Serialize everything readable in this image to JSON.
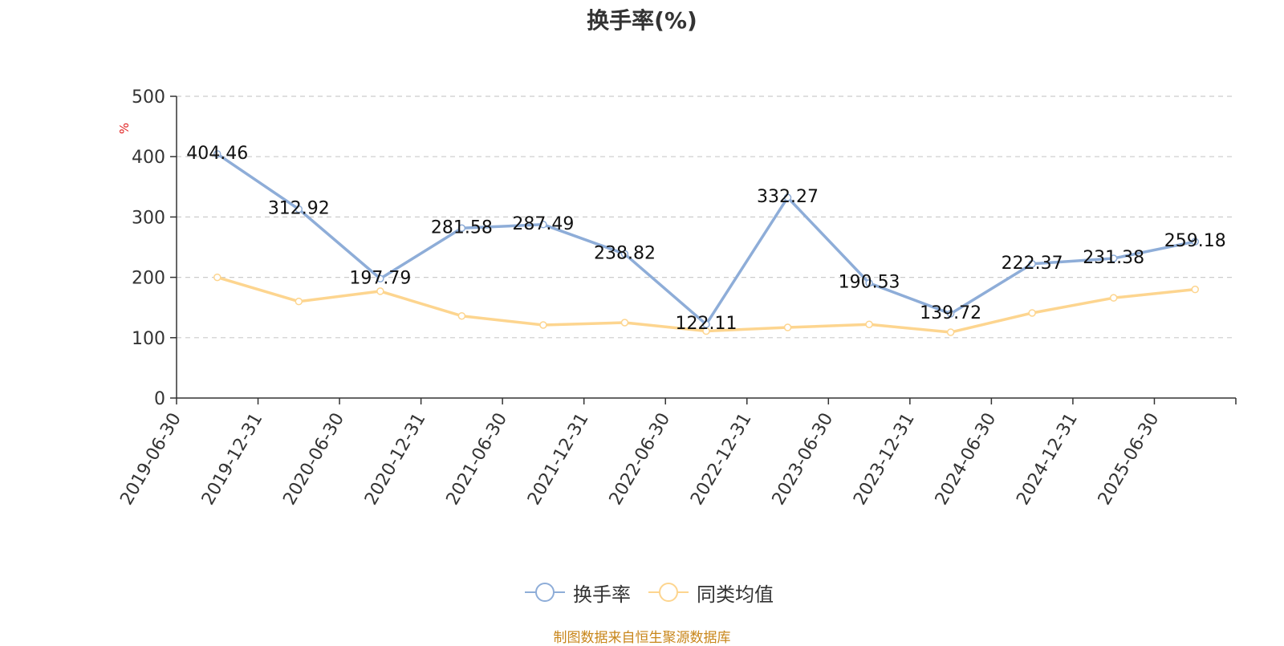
{
  "chart_data": {
    "type": "line",
    "title": "换手率(%)",
    "ylabel": "%",
    "xlabel": "",
    "ylim": [
      0,
      500
    ],
    "yticks": [
      0,
      100,
      200,
      300,
      400,
      500
    ],
    "grid": true,
    "legend_position": "bottom-center",
    "categories": [
      "2019-06-30",
      "2019-12-31",
      "2020-06-30",
      "2020-12-31",
      "2021-06-30",
      "2021-12-31",
      "2022-06-30",
      "2022-12-31",
      "2023-06-30",
      "2023-12-31",
      "2024-06-30",
      "2024-12-31",
      "2025-06-30"
    ],
    "series": [
      {
        "name": "换手率",
        "color": "#8eadd8",
        "show_labels": true,
        "values": [
          404.46,
          312.92,
          197.79,
          281.58,
          287.49,
          238.82,
          122.11,
          332.27,
          190.53,
          139.72,
          222.37,
          231.38,
          259.18
        ]
      },
      {
        "name": "同类均值",
        "color": "#fdd58f",
        "show_labels": false,
        "values": [
          200,
          160,
          177,
          136,
          121,
          125,
          111,
          117,
          122,
          109,
          141,
          166,
          180
        ]
      }
    ]
  },
  "source_note": "制图数据来自恒生聚源数据库"
}
